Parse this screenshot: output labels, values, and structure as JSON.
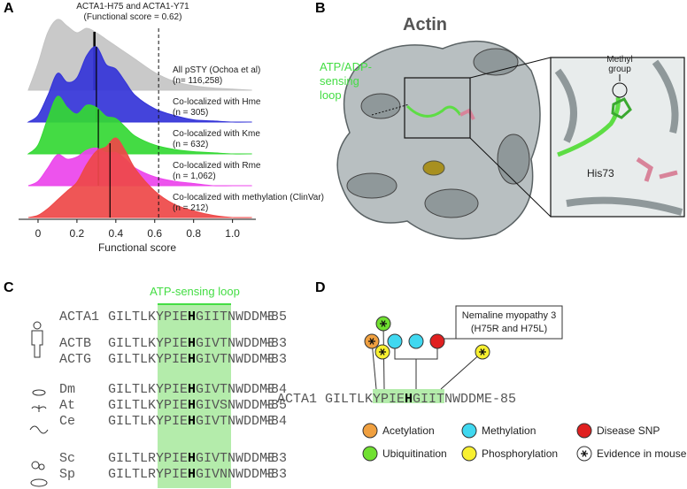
{
  "panel_labels": [
    "A",
    "B",
    "C",
    "D"
  ],
  "chart_data": {
    "type": "ridgeline",
    "annotation": [
      "ACTA1-H75 and ACTA1-Y71",
      "(Functional score = 0.62)"
    ],
    "reference": 0.62,
    "x_label": "Functional score",
    "xlim": [
      -0.1,
      1.12
    ],
    "xticks": [
      0,
      0.2,
      0.4,
      0.6,
      0.8,
      {
        "value": 1,
        "label": "1.0"
      }
    ],
    "x": [
      -0.05,
      0,
      0.05,
      0.1,
      0.15,
      0.2,
      0.25,
      0.3,
      0.35,
      0.4,
      0.45,
      0.5,
      0.6,
      0.7,
      0.8,
      0.9,
      1,
      1.1
    ],
    "series": [
      {
        "name": "All pSTY (Ochoa et al)",
        "count_label": "(n= 116,258)",
        "color": "#c4c4c4",
        "median": 0.29,
        "values": [
          0,
          1.2,
          2.6,
          3.2,
          2.9,
          2.6,
          2.8,
          2.6,
          2.3,
          2.0,
          1.7,
          1.4,
          0.8,
          0.4,
          0.2,
          0.1,
          0.05,
          0
        ]
      },
      {
        "name": "Co-localized with Hme",
        "count_label": "(n = 305)",
        "color": "#3434d8",
        "median": 0.3,
        "values": [
          0,
          0.3,
          1.2,
          2.2,
          1.8,
          2.0,
          3.0,
          3.4,
          2.6,
          2.4,
          1.8,
          1.2,
          0.6,
          0.3,
          0.1,
          0.05,
          0,
          0
        ]
      },
      {
        "name": "Co-localized with Kme",
        "count_label": "(n = 632)",
        "color": "#34d834",
        "median": 0.31,
        "values": [
          0,
          0.4,
          1.6,
          2.6,
          2.1,
          1.8,
          2.2,
          2.1,
          1.7,
          1.6,
          1.2,
          0.8,
          0.4,
          0.2,
          0.1,
          0.05,
          0,
          0
        ]
      },
      {
        "name": "Co-localized with Rme",
        "count_label": "(n = 1,062)",
        "color": "#ec44ec",
        "median": 0.31,
        "values": [
          0,
          0.2,
          0.8,
          1.4,
          1.2,
          1.3,
          1.6,
          1.7,
          1.5,
          1.5,
          1.2,
          0.8,
          0.4,
          0.2,
          0.1,
          0,
          0,
          0
        ]
      },
      {
        "name": "Co-localized with methylation (ClinVar)",
        "count_label": "(n = 212)",
        "color": "#ee4848",
        "median": 0.37,
        "values": [
          0,
          0.1,
          0.4,
          0.8,
          1.2,
          1.6,
          2.4,
          3.0,
          3.2,
          3.6,
          3.0,
          2.2,
          1.2,
          0.6,
          0.3,
          0.1,
          0,
          0
        ]
      }
    ]
  },
  "structure": {
    "title": "Actin",
    "loop_label": [
      "ATP/ADP-",
      "sensing",
      "loop"
    ],
    "methyl_label": [
      "Methyl",
      "group"
    ],
    "residue_label": "His73"
  },
  "alignment": {
    "title": "ATP-sensing loop",
    "rows": [
      {
        "name": "ACTA1",
        "seq": [
          "GILTLKYPIE",
          "H",
          "GIITNWDDME"
        ],
        "end": "-85"
      },
      {
        "name": "ACTB",
        "seq": [
          "GILTLKYPIE",
          "H",
          "GIVTNWDDME"
        ],
        "end": "-83"
      },
      {
        "name": "ACTG",
        "seq": [
          "GILTLKYPIE",
          "H",
          "GIVTNWDDME"
        ],
        "end": "-83"
      },
      {
        "name": "Dm",
        "seq": [
          "GILTLKYPIE",
          "H",
          "GIVTNWDDME"
        ],
        "end": "-84"
      },
      {
        "name": "At",
        "seq": [
          "GILTLKYPIE",
          "H",
          "GIVSNWDDME"
        ],
        "end": "-85"
      },
      {
        "name": "Ce",
        "seq": [
          "GILTLKYPIE",
          "H",
          "GIVTNWDDME"
        ],
        "end": "-84"
      },
      {
        "name": "Sc",
        "seq": [
          "GILTLRYPIE",
          "H",
          "GIVTNWDDME"
        ],
        "end": "-83"
      },
      {
        "name": "Sp",
        "seq": [
          "GILTLRYPIE",
          "H",
          "GIVNNWDDME"
        ],
        "end": "-83"
      }
    ]
  },
  "ptm": {
    "disease_note": [
      "Nemaline myopathy 3",
      "(H75R and H75L)"
    ],
    "sequence": {
      "name": "ACTA1",
      "seq": [
        "GILTLKYPIE",
        "H",
        "GIITNWDDME"
      ],
      "end": "-85"
    },
    "legend": [
      {
        "label": "Acetylation",
        "color": "#f0a040"
      },
      {
        "label": "Methylation",
        "color": "#40d8f0"
      },
      {
        "label": "Disease SNP",
        "color": "#e02020"
      },
      {
        "label": "Ubiquitination",
        "color": "#70e030"
      },
      {
        "label": "Phosphorylation",
        "color": "#f8f030"
      },
      {
        "label": "Evidence in mouse",
        "color": "#ffffff"
      }
    ]
  }
}
